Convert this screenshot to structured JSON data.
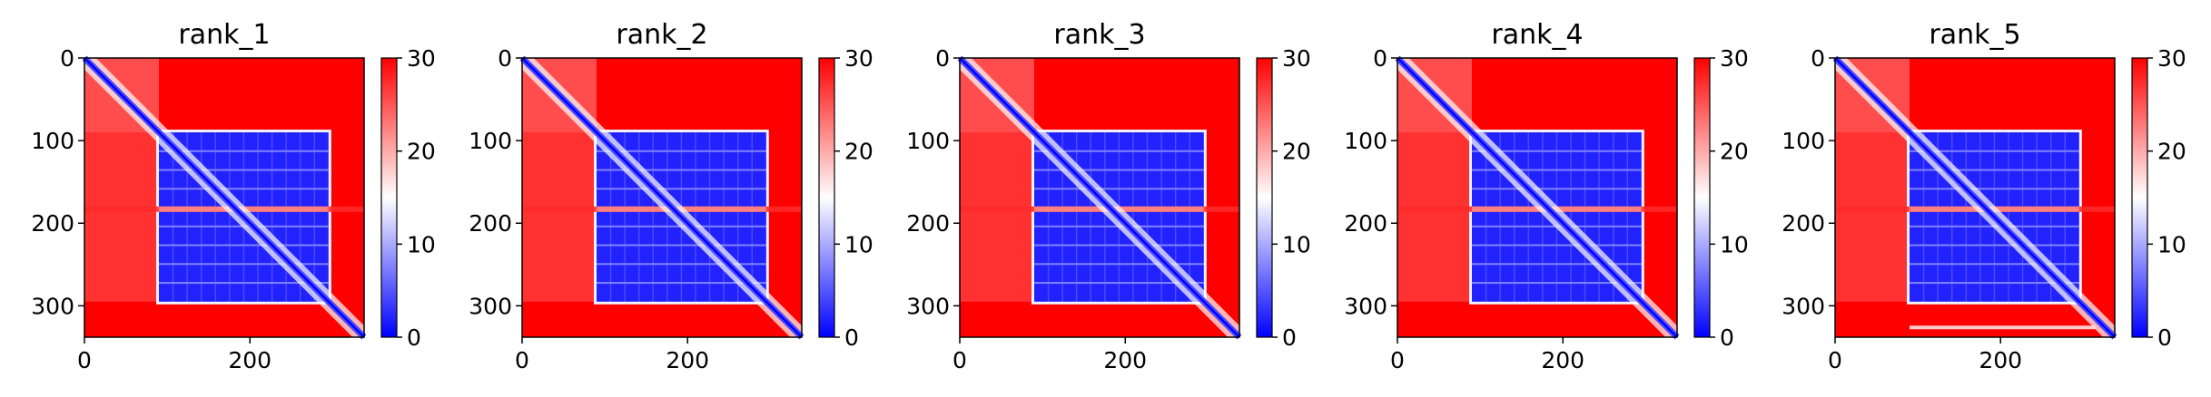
{
  "chart_data": [
    {
      "type": "heatmap",
      "title": "rank_1",
      "matrix_size": 338,
      "x_ticks": [
        0,
        200
      ],
      "y_ticks": [
        0,
        100,
        200,
        300
      ],
      "colorbar": {
        "min": 0,
        "max": 30,
        "ticks": [
          0,
          10,
          20,
          30
        ],
        "colormap": "bwr"
      },
      "blocks": {
        "domain_start": 90,
        "domain_end": 295,
        "diagonal_band": true,
        "internal_red_stripe": 183,
        "bottom_artifact": false
      }
    },
    {
      "type": "heatmap",
      "title": "rank_2",
      "matrix_size": 338,
      "x_ticks": [
        0,
        200
      ],
      "y_ticks": [
        0,
        100,
        200,
        300
      ],
      "colorbar": {
        "min": 0,
        "max": 30,
        "ticks": [
          0,
          10,
          20,
          30
        ],
        "colormap": "bwr"
      },
      "blocks": {
        "domain_start": 90,
        "domain_end": 295,
        "diagonal_band": true,
        "internal_red_stripe": 183,
        "bottom_artifact": false
      }
    },
    {
      "type": "heatmap",
      "title": "rank_3",
      "matrix_size": 338,
      "x_ticks": [
        0,
        200
      ],
      "y_ticks": [
        0,
        100,
        200,
        300
      ],
      "colorbar": {
        "min": 0,
        "max": 30,
        "ticks": [
          0,
          10,
          20,
          30
        ],
        "colormap": "bwr"
      },
      "blocks": {
        "domain_start": 90,
        "domain_end": 295,
        "diagonal_band": true,
        "internal_red_stripe": 183,
        "bottom_artifact": false
      }
    },
    {
      "type": "heatmap",
      "title": "rank_4",
      "matrix_size": 338,
      "x_ticks": [
        0,
        200
      ],
      "y_ticks": [
        0,
        100,
        200,
        300
      ],
      "colorbar": {
        "min": 0,
        "max": 30,
        "ticks": [
          0,
          10,
          20,
          30
        ],
        "colormap": "bwr"
      },
      "blocks": {
        "domain_start": 90,
        "domain_end": 295,
        "diagonal_band": true,
        "internal_red_stripe": 183,
        "bottom_artifact": false
      }
    },
    {
      "type": "heatmap",
      "title": "rank_5",
      "matrix_size": 338,
      "x_ticks": [
        0,
        200
      ],
      "y_ticks": [
        0,
        100,
        200,
        300
      ],
      "colorbar": {
        "min": 0,
        "max": 30,
        "ticks": [
          0,
          10,
          20,
          30
        ],
        "colormap": "bwr"
      },
      "blocks": {
        "domain_start": 90,
        "domain_end": 295,
        "diagonal_band": true,
        "internal_red_stripe": 183,
        "bottom_artifact": true
      }
    }
  ],
  "colors": {
    "low": "#0000ff",
    "mid": "#ffffff",
    "high": "#ff0000",
    "axis": "#000000"
  }
}
